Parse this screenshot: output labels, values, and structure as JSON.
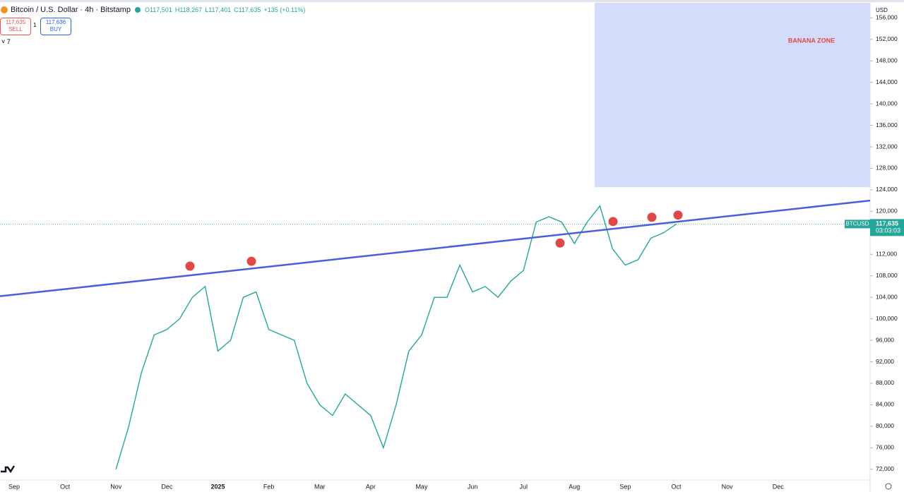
{
  "header": {
    "symbol": "Bitcoin / U.S. Dollar · 4h · Bitstamp",
    "ohlc": [
      "O117,501",
      "H118,267",
      "L117,401",
      "C117,635",
      "+135 (+0.11%)"
    ],
    "sell_price": "117,635",
    "sell": "SELL",
    "spread": "1",
    "buy_price": "117,636",
    "buy": "BUY",
    "indicators": "7",
    "currency": "USD"
  },
  "chart_data": {
    "type": "line",
    "categories": [
      "Sep",
      null,
      null,
      null,
      "Oct",
      null,
      null,
      null,
      "Nov",
      null,
      null,
      null,
      "Dec",
      null,
      null,
      null,
      "2025",
      null,
      null,
      null,
      "Feb",
      null,
      null,
      null,
      "Mar",
      null,
      null,
      null,
      "Apr",
      null,
      null,
      null,
      "May",
      null,
      null,
      null,
      "Jun",
      null,
      null,
      null,
      "Jul",
      null,
      null,
      null,
      "Aug",
      null,
      null,
      null,
      "Sep",
      null,
      null,
      null,
      "Oct",
      null,
      null,
      null,
      "Nov",
      null,
      null,
      null,
      "Dec"
    ],
    "series": [
      {
        "color": "#26a69a",
        "values": [
          null,
          null,
          null,
          null,
          null,
          null,
          null,
          null,
          72000,
          80000,
          90000,
          97000,
          98000,
          100000,
          104000,
          106000,
          94000,
          96000,
          104000,
          105000,
          98000,
          97000,
          96000,
          88000,
          84000,
          82000,
          86000,
          84000,
          82000,
          76000,
          84000,
          94000,
          97000,
          104000,
          104000,
          110000,
          105000,
          106000,
          104000,
          107000,
          109000,
          118000,
          119000,
          118000,
          114000,
          118000,
          121000,
          113000,
          110000,
          111000,
          115000,
          116000,
          117635,
          null,
          null,
          null,
          null,
          null,
          null,
          null,
          null
        ]
      }
    ],
    "ylim": [
      70000,
      158800
    ],
    "yticks": [
      {
        "value": 72000,
        "label": "72,000"
      },
      {
        "value": 76000,
        "label": "76,000"
      },
      {
        "value": 80000,
        "label": "80,000"
      },
      {
        "value": 84000,
        "label": "84,000"
      },
      {
        "value": 88000,
        "label": "88,000"
      },
      {
        "value": 92000,
        "label": "92,000"
      },
      {
        "value": 96000,
        "label": "96,000"
      },
      {
        "value": 100000,
        "label": "100,000"
      },
      {
        "value": 104000,
        "label": "104,000"
      },
      {
        "value": 108000,
        "label": "108,000"
      },
      {
        "value": 112000,
        "label": "112,000"
      },
      {
        "value": 116000,
        "label": "116,000"
      },
      {
        "value": 120000,
        "label": "120,000"
      },
      {
        "value": 124000,
        "label": "124,000"
      },
      {
        "value": 128000,
        "label": "128,000"
      },
      {
        "value": 132000,
        "label": "132,000"
      },
      {
        "value": 136000,
        "label": "136,000"
      },
      {
        "value": 140000,
        "label": "140,000"
      },
      {
        "value": 144000,
        "label": "144,000"
      },
      {
        "value": 148000,
        "label": "148,000"
      },
      {
        "value": 152000,
        "label": "152,000"
      },
      {
        "value": 156000,
        "label": "156,000"
      }
    ],
    "trendline": {
      "color": "#4a5ee0",
      "values": [
        104200,
        122000
      ]
    },
    "zone": {
      "label": "BANANA ZONE",
      "from": 124500,
      "color": "#d4dcfa"
    },
    "markers": {
      "color": "#e04848",
      "values": [
        109800,
        110700,
        114100,
        118100,
        118900,
        119300
      ]
    },
    "last_price": {
      "symbol": "BTCUSD",
      "value": 117635,
      "label": "117,635",
      "countdown": "03:03:03",
      "color": "#26a69a"
    }
  }
}
